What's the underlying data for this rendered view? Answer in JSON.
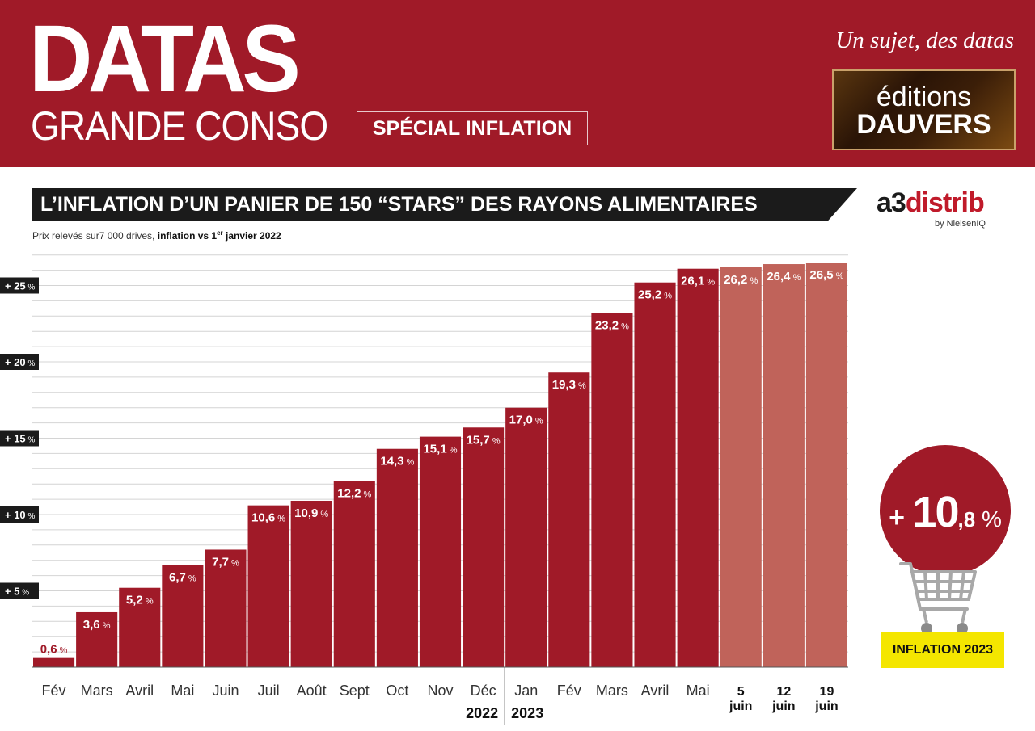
{
  "header": {
    "logo_line1": "DATAS",
    "logo_line2": "GRANDE CONSO",
    "special_label": "SPÉCIAL INFLATION",
    "tagline": "Un sujet, des datas",
    "publisher_line1": "éditions",
    "publisher_line2": "DAUVERS"
  },
  "source_logo": {
    "main_dark": "a3",
    "main_red": "distrib",
    "sub": "by NielsenIQ"
  },
  "badge": {
    "value_plus": "+ ",
    "value_int": "10",
    "value_dec": ",8",
    "value_unit": " %",
    "label": "INFLATION 2023",
    "icon": "shopping-cart-icon"
  },
  "colors": {
    "brand_red": "#a01a28",
    "light_bar": "#c0635a",
    "title_bar": "#1b1b1b",
    "badge_yellow": "#f4e600"
  },
  "chart_data": {
    "type": "bar",
    "title": "L’INFLATION D’UN PANIER DE 150 “STARS” DES RAYONS ALIMENTAIRES",
    "subtitle_prefix": "Prix relevés sur7 000 drives, ",
    "subtitle_bold": "inflation vs 1",
    "subtitle_sup": "er",
    "subtitle_bold_end": " janvier 2022",
    "ylim": [
      0,
      27
    ],
    "grid": true,
    "yticks": [
      {
        "value": 5,
        "label": "+ 5"
      },
      {
        "value": 10,
        "label": "+ 10"
      },
      {
        "value": 15,
        "label": "+ 15"
      },
      {
        "value": 20,
        "label": "+ 20"
      },
      {
        "value": 25,
        "label": "+ 25"
      }
    ],
    "ytick_unit": "%",
    "value_unit": "%",
    "year_labels": [
      {
        "label": "2022",
        "after_index": 10
      },
      {
        "label": "2023",
        "after_index": 11
      }
    ],
    "bars": [
      {
        "category": "Fév",
        "value": 0.6,
        "label": "0,6",
        "highlight": false,
        "period": "month"
      },
      {
        "category": "Mars",
        "value": 3.6,
        "label": "3,6",
        "highlight": false,
        "period": "month"
      },
      {
        "category": "Avril",
        "value": 5.2,
        "label": "5,2",
        "highlight": false,
        "period": "month"
      },
      {
        "category": "Mai",
        "value": 6.7,
        "label": "6,7",
        "highlight": false,
        "period": "month"
      },
      {
        "category": "Juin",
        "value": 7.7,
        "label": "7,7",
        "highlight": false,
        "period": "month"
      },
      {
        "category": "Juil",
        "value": 10.6,
        "label": "10,6",
        "highlight": false,
        "period": "month"
      },
      {
        "category": "Août",
        "value": 10.9,
        "label": "10,9",
        "highlight": false,
        "period": "month"
      },
      {
        "category": "Sept",
        "value": 12.2,
        "label": "12,2",
        "highlight": false,
        "period": "month"
      },
      {
        "category": "Oct",
        "value": 14.3,
        "label": "14,3",
        "highlight": false,
        "period": "month"
      },
      {
        "category": "Nov",
        "value": 15.1,
        "label": "15,1",
        "highlight": false,
        "period": "month"
      },
      {
        "category": "Déc",
        "value": 15.7,
        "label": "15,7",
        "highlight": false,
        "period": "month"
      },
      {
        "category": "Jan",
        "value": 17.0,
        "label": "17,0",
        "highlight": false,
        "period": "month"
      },
      {
        "category": "Fév",
        "value": 19.3,
        "label": "19,3",
        "highlight": false,
        "period": "month"
      },
      {
        "category": "Mars",
        "value": 23.2,
        "label": "23,2",
        "highlight": false,
        "period": "month"
      },
      {
        "category": "Avril",
        "value": 25.2,
        "label": "25,2",
        "highlight": false,
        "period": "month"
      },
      {
        "category": "Mai",
        "value": 26.1,
        "label": "26,1",
        "highlight": false,
        "period": "month"
      },
      {
        "category": "5 juin",
        "line1": "5",
        "line2": "juin",
        "value": 26.2,
        "label": "26,2",
        "highlight": true,
        "period": "week"
      },
      {
        "category": "12 juin",
        "line1": "12",
        "line2": "juin",
        "value": 26.4,
        "label": "26,4",
        "highlight": true,
        "period": "week"
      },
      {
        "category": "19 juin",
        "line1": "19",
        "line2": "juin",
        "value": 26.5,
        "label": "26,5",
        "highlight": true,
        "period": "week"
      }
    ]
  }
}
